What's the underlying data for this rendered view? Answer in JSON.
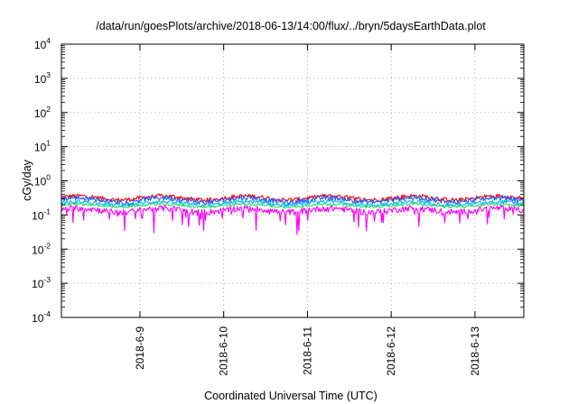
{
  "chart_data": {
    "type": "line",
    "title": "/data/run/goesPlots/archive/2018-06-13/14:00/flux/../bryn/5daysEarthData.plot",
    "xlabel": "Coordinated Universal Time (UTC)",
    "ylabel": "cGy/day",
    "y_scale": "log",
    "ylim": [
      0.0001,
      10000
    ],
    "y_ticks": [
      {
        "base": "10",
        "exp": "4",
        "value": 10000
      },
      {
        "base": "10",
        "exp": "3",
        "value": 1000
      },
      {
        "base": "10",
        "exp": "2",
        "value": 100
      },
      {
        "base": "10",
        "exp": "1",
        "value": 10
      },
      {
        "base": "10",
        "exp": "0",
        "value": 1
      },
      {
        "base": "10",
        "exp": "-1",
        "value": 0.1
      },
      {
        "base": "10",
        "exp": "-2",
        "value": 0.01
      },
      {
        "base": "10",
        "exp": "-3",
        "value": 0.001
      },
      {
        "base": "10",
        "exp": "-4",
        "value": 0.0001
      }
    ],
    "xlim": [
      "2018-06-08T01:30",
      "2018-06-13T14:00"
    ],
    "x_ticks": [
      {
        "label": "2018-6-9",
        "value": "2018-06-09T00:00"
      },
      {
        "label": "2018-6-10",
        "value": "2018-06-10T00:00"
      },
      {
        "label": "2018-6-11",
        "value": "2018-06-11T00:00"
      },
      {
        "label": "2018-6-12",
        "value": "2018-06-12T00:00"
      },
      {
        "label": "2018-6-13",
        "value": "2018-06-13T00:00"
      }
    ],
    "grid": true,
    "series": [
      {
        "color": "#ff0000",
        "base": 0.32,
        "amp": 0.22,
        "noise": 0.14,
        "drop": 0.1
      },
      {
        "color": "#1e5bff",
        "base": 0.28,
        "amp": 0.24,
        "noise": 0.16,
        "drop": 0.12
      },
      {
        "color": "#00b7ff",
        "base": 0.22,
        "amp": 0.2,
        "noise": 0.12,
        "drop": 0.1
      },
      {
        "color": "#33dd66",
        "base": 0.19,
        "amp": 0.16,
        "noise": 0.08,
        "drop": 0.06
      },
      {
        "color": "#ff00ff",
        "base": 0.14,
        "amp": 0.22,
        "noise": 0.2,
        "drop": 0.55
      }
    ]
  }
}
